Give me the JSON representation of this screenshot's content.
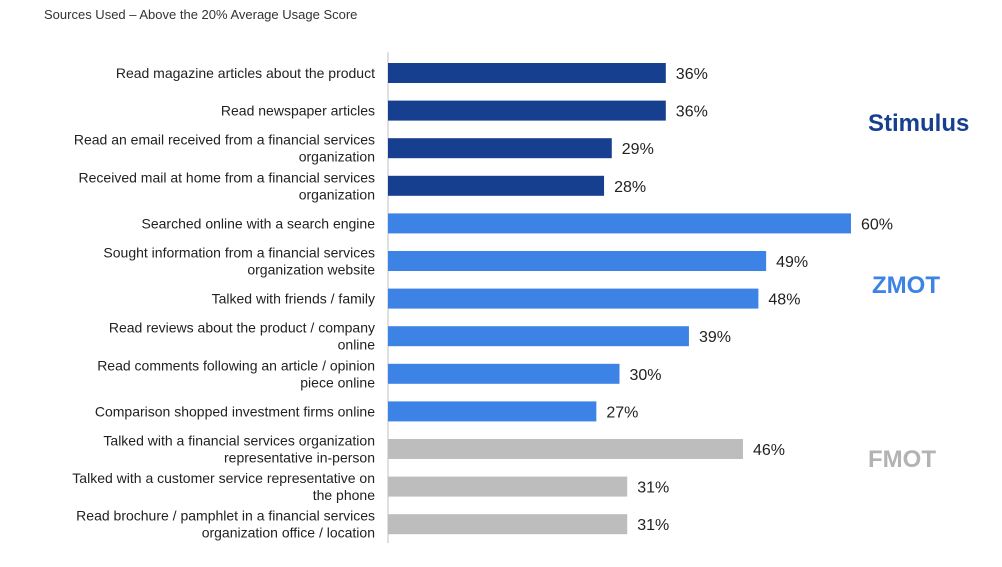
{
  "chart_data": {
    "type": "bar",
    "orientation": "horizontal",
    "title": "Sources Used – Above the 20% Average Usage Score",
    "value_format": "percent",
    "categories": [
      [
        "Read magazine articles about the product"
      ],
      [
        "Read newspaper articles"
      ],
      [
        "Read an email received from a financial services",
        "organization"
      ],
      [
        "Received mail at home from a financial services",
        "organization"
      ],
      [
        "Searched online with a search engine"
      ],
      [
        "Sought information from a financial services",
        "organization website"
      ],
      [
        "Talked with friends / family"
      ],
      [
        "Read reviews about the product / company",
        "online"
      ],
      [
        "Read comments following an article / opinion",
        "piece online"
      ],
      [
        "Comparison shopped investment firms online"
      ],
      [
        "Talked with a financial services organization",
        "representative in-person"
      ],
      [
        "Talked with a customer service representative on",
        "the phone"
      ],
      [
        "Read brochure / pamphlet in a financial services",
        "organization office / location"
      ]
    ],
    "values": [
      36,
      36,
      29,
      28,
      60,
      49,
      48,
      39,
      30,
      27,
      46,
      31,
      31
    ],
    "value_labels": [
      "36%",
      "36%",
      "29%",
      "28%",
      "60%",
      "49%",
      "48%",
      "39%",
      "30%",
      "27%",
      "46%",
      "31%",
      "31%"
    ],
    "groups": [
      {
        "name": "Stimulus",
        "start": 0,
        "end": 3,
        "bar_color": "#163f8f",
        "label_color": "#163f8f"
      },
      {
        "name": "ZMOT",
        "start": 4,
        "end": 9,
        "bar_color": "#3d83e6",
        "label_color": "#3d83e6"
      },
      {
        "name": "FMOT",
        "start": 10,
        "end": 12,
        "bar_color": "#bdbdbd",
        "label_color": "#b3b3b3"
      }
    ],
    "xlim": [
      0,
      60
    ],
    "grid": false,
    "legend": "none"
  }
}
